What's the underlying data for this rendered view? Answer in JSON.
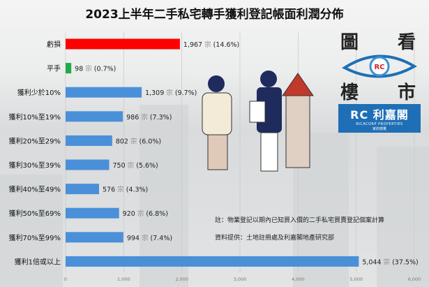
{
  "chart_data": {
    "type": "bar",
    "orientation": "horizontal",
    "title": "2023上半年二手私宅轉手獲利登記帳面利潤分佈",
    "categories": [
      "虧損",
      "平手",
      "獲利少於10%",
      "獲利10%至19%",
      "獲利20%至29%",
      "獲利30%至39%",
      "獲利40%至49%",
      "獲利50%至69%",
      "獲利70%至99%",
      "獲利1倍或以上"
    ],
    "values": [
      1967,
      98,
      1309,
      986,
      802,
      750,
      576,
      920,
      994,
      5044
    ],
    "value_labels": [
      "1,967",
      "98",
      "1,309",
      "986",
      "802",
      "750",
      "576",
      "920",
      "994",
      "5,044"
    ],
    "percent_labels": [
      "(14.6%)",
      "(0.7%)",
      "(9.7%)",
      "(7.3%)",
      "(6.0%)",
      "(5.6%)",
      "(4.3%)",
      "(6.8%)",
      "(7.4%)",
      "(37.5%)"
    ],
    "unit": "宗",
    "colors": [
      "#ff0000",
      "#22a94b",
      "#4a90d9",
      "#4a90d9",
      "#4a90d9",
      "#4a90d9",
      "#4a90d9",
      "#4a90d9",
      "#4a90d9",
      "#4a90d9"
    ],
    "xlim": [
      0,
      6000
    ],
    "xticks": [
      0,
      1000,
      2000,
      3000,
      4000,
      5000,
      6000
    ],
    "xtick_labels": [
      "0",
      "1,000",
      "2,000",
      "3,000",
      "4,000",
      "5,000",
      "6,000"
    ],
    "grid": true
  },
  "notes": {
    "note": "註：物業登記以期內已知買入價的二手私宅買賣登記個案計算",
    "source": "資料提供：土地註冊處及利嘉閣地產研究部"
  },
  "logo": {
    "chars": [
      "圖",
      "看",
      "樓",
      "市"
    ],
    "brand_cn": "利嘉閣",
    "brand_en": "RICACORP PROPERTIES",
    "slogan": "家的感覺"
  }
}
